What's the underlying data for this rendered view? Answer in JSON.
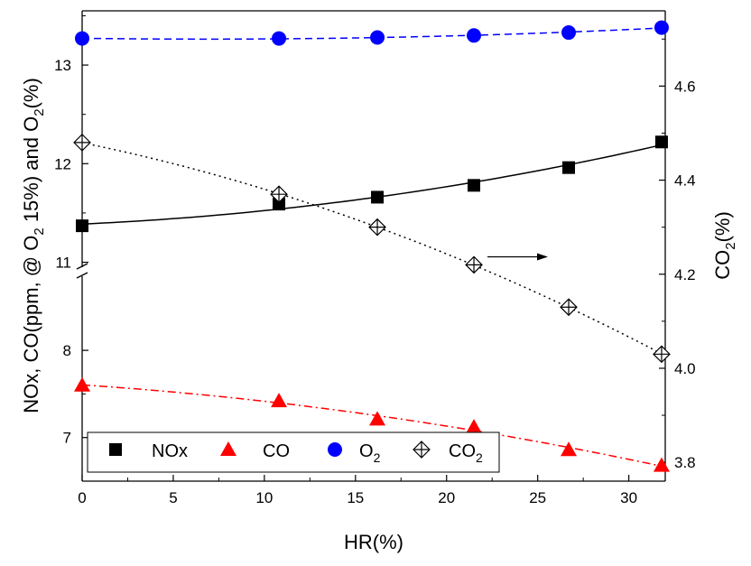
{
  "chart_data": {
    "type": "line",
    "xlabel": "HR(%)",
    "ylabel_left": {
      "parts": [
        "NOx, CO(ppm, @ O",
        "2",
        " 15%) and O",
        "2",
        "(%)"
      ]
    },
    "ylabel_right": {
      "parts": [
        "CO",
        "2",
        "(%)"
      ]
    },
    "x_ticks": [
      "0",
      "5",
      "10",
      "15",
      "20",
      "25",
      "30"
    ],
    "xlim": [
      0,
      32
    ],
    "y_left_upper_ticks": [
      "11",
      "12",
      "13"
    ],
    "y_left_upper_range": [
      10.95,
      13.55
    ],
    "y_left_lower_ticks": [
      "7",
      "8"
    ],
    "y_left_lower_range": [
      6.5,
      8.85
    ],
    "axis_break": {
      "between": [
        8.85,
        10.95
      ]
    },
    "y_right_ticks": [
      "3.8",
      "4.0",
      "4.2",
      "4.4",
      "4.6"
    ],
    "y_right_range": [
      3.76,
      4.76
    ],
    "series": [
      {
        "name": "NOx",
        "marker": "square",
        "color": "#000000",
        "line": "solid",
        "axis": "left",
        "x": [
          0,
          10.8,
          16.2,
          21.5,
          26.7,
          31.8
        ],
        "y": [
          11.37,
          11.59,
          11.66,
          11.78,
          11.96,
          12.22
        ]
      },
      {
        "name": "CO",
        "marker": "triangle",
        "color": "#ff0000",
        "line": "dashdot",
        "axis": "left",
        "x": [
          0,
          10.8,
          16.2,
          21.5,
          26.7,
          31.8
        ],
        "y": [
          7.6,
          7.42,
          7.21,
          7.12,
          6.86,
          6.68
        ]
      },
      {
        "name": "O2",
        "legend_parts": [
          "O",
          "2"
        ],
        "marker": "circle",
        "color": "#0000ff",
        "line": "dashed",
        "axis": "left",
        "x": [
          0,
          10.8,
          16.2,
          21.5,
          26.7,
          31.8
        ],
        "y": [
          13.27,
          13.27,
          13.28,
          13.3,
          13.33,
          13.38
        ]
      },
      {
        "name": "CO2",
        "legend_parts": [
          "CO",
          "2"
        ],
        "marker": "crossed-diamond",
        "color": "#000000",
        "line": "dotted",
        "axis": "right",
        "x": [
          0,
          10.8,
          16.2,
          21.5,
          26.7,
          31.8
        ],
        "y": [
          4.48,
          4.37,
          4.3,
          4.22,
          4.13,
          4.03
        ]
      }
    ],
    "annotation": {
      "type": "arrow",
      "points_to": "right-axis",
      "series": "CO2"
    },
    "legend": {
      "placement": "bottom-left",
      "orientation": "horizontal"
    }
  }
}
